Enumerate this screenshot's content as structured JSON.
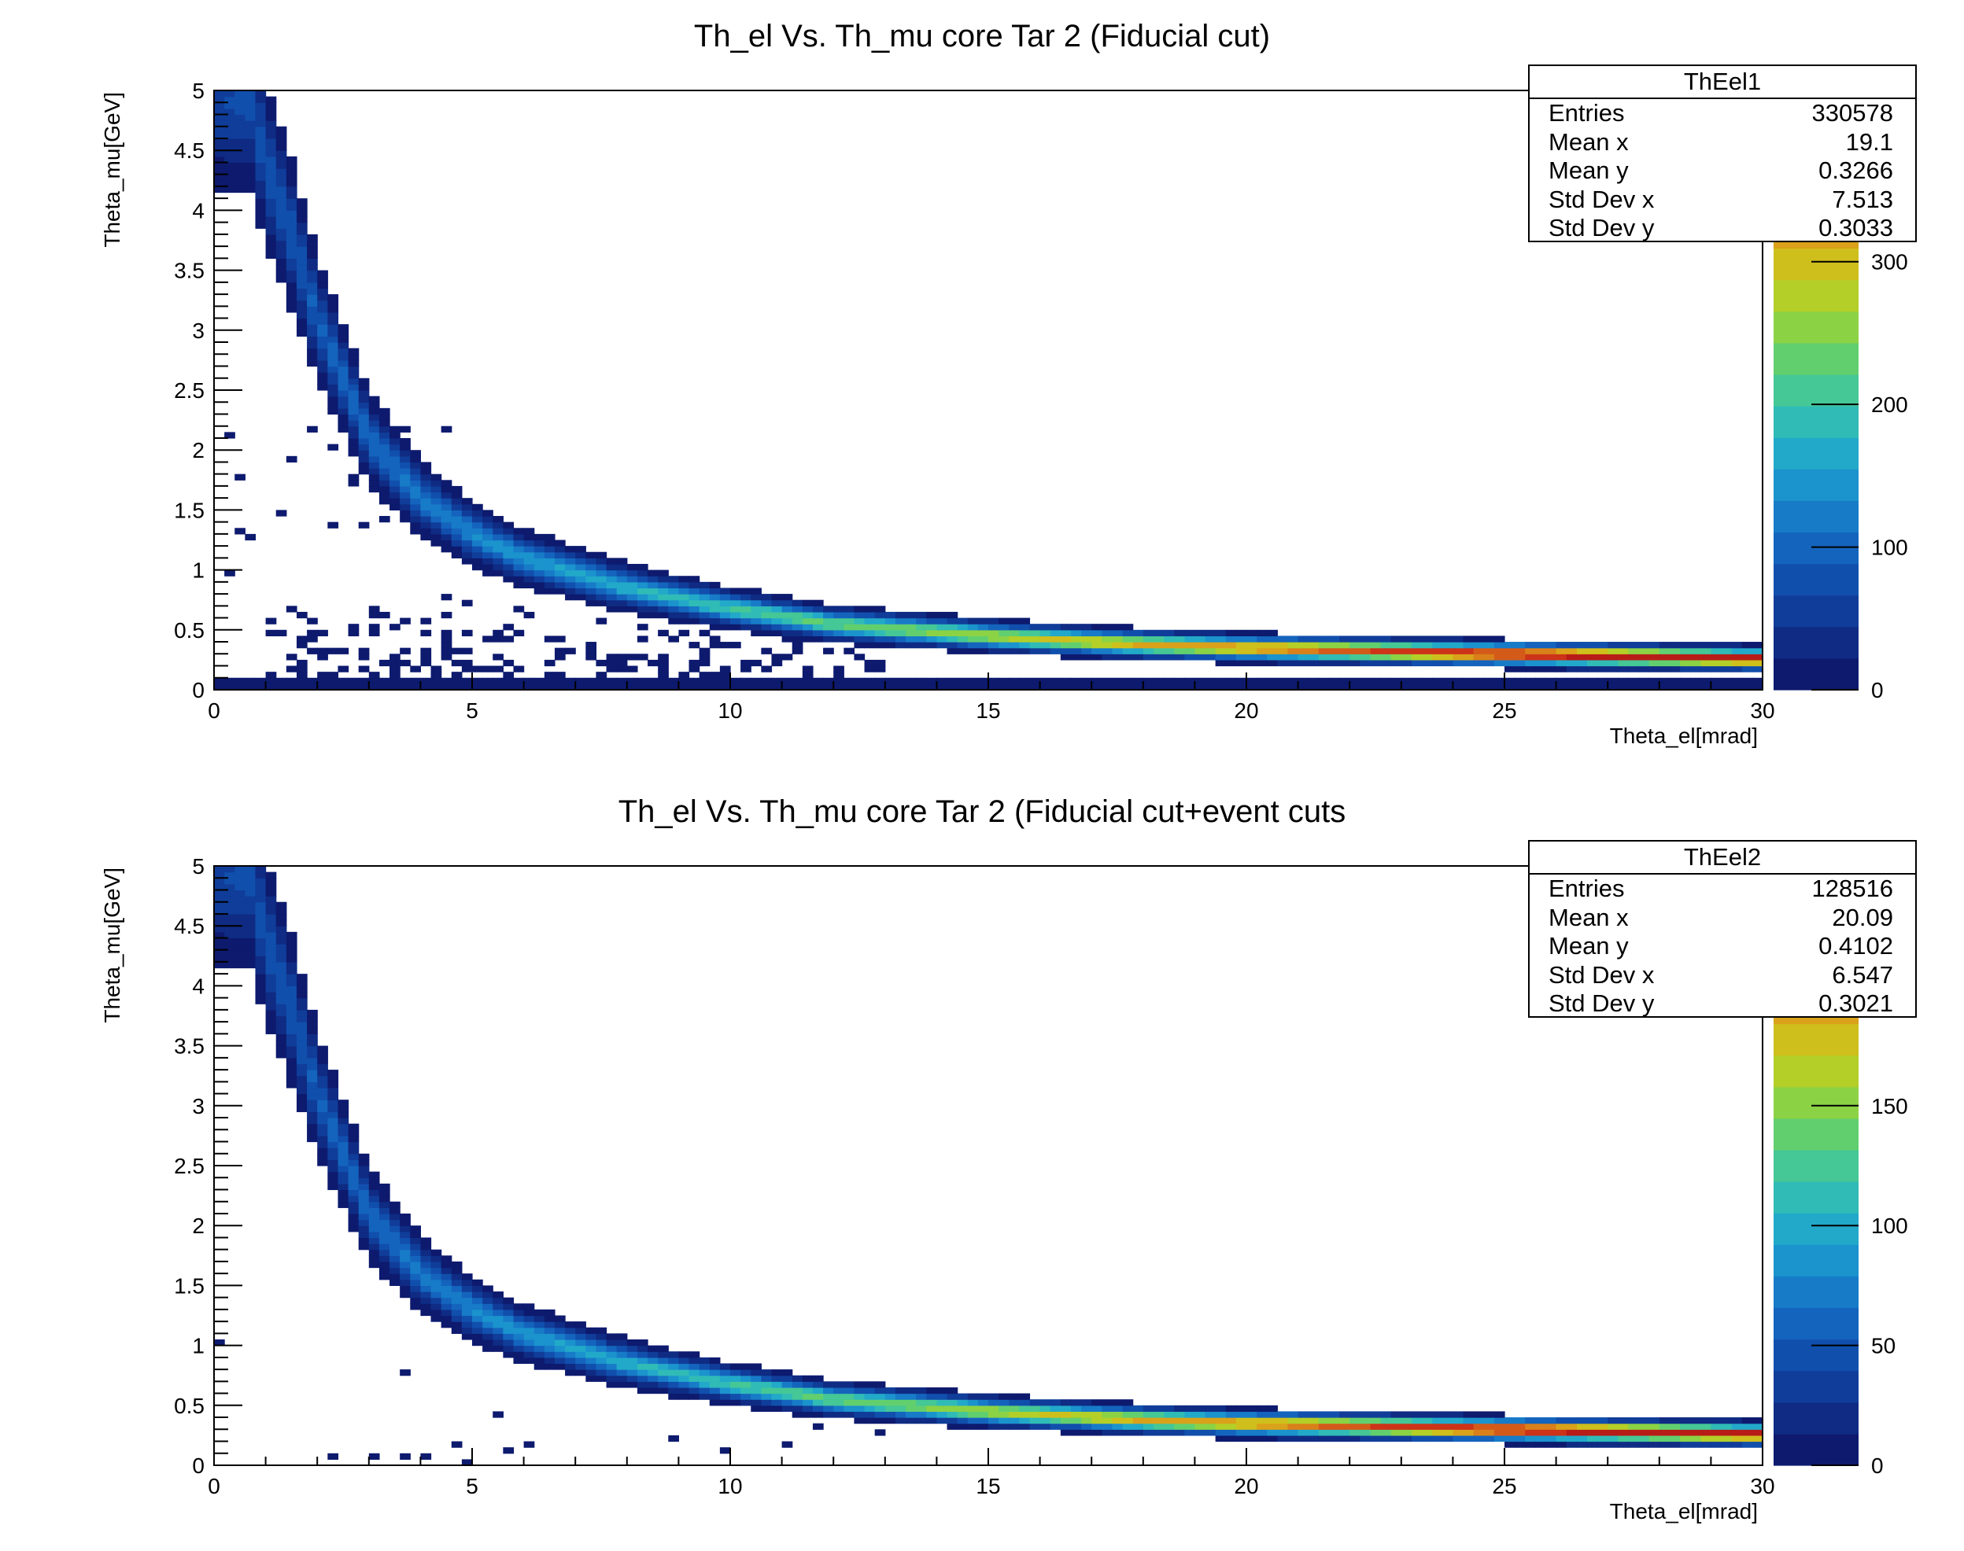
{
  "chart_data": [
    {
      "type": "heatmap",
      "title": "Th_el Vs. Th_mu core Tar 2 (Fiducial cut)",
      "xlabel": "Theta_el[mrad]",
      "ylabel": "Theta_mu[GeV]",
      "xlim": [
        0,
        30
      ],
      "ylim": [
        0,
        5
      ],
      "x_ticks": [
        "0",
        "5",
        "10",
        "15",
        "20",
        "25",
        "30"
      ],
      "y_ticks": [
        "0",
        "0.5",
        "1",
        "1.5",
        "2",
        "2.5",
        "3",
        "3.5",
        "4",
        "4.5",
        "5"
      ],
      "zlim": [
        0,
        420
      ],
      "z_ticks": [
        "0",
        "100",
        "200",
        "300"
      ],
      "grid": false,
      "stats": {
        "name": "ThEel1",
        "rows": [
          {
            "label": "Entries",
            "value": "330578"
          },
          {
            "label": "Mean x",
            "value": "19.1"
          },
          {
            "label": "Mean y",
            "value": "0.3266"
          },
          {
            "label": "Std Dev x",
            "value": "7.513"
          },
          {
            "label": "Std Dev y",
            "value": "0.3033"
          }
        ]
      },
      "band": {
        "x": [
          0.7,
          1,
          1.5,
          2,
          2.5,
          3,
          4,
          5,
          6,
          8,
          10,
          12,
          15,
          18,
          20,
          25,
          30
        ],
        "y": [
          4.9,
          4.4,
          3.8,
          3.1,
          2.6,
          2.1,
          1.6,
          1.3,
          1.1,
          0.85,
          0.68,
          0.55,
          0.45,
          0.38,
          0.35,
          0.3,
          0.26
        ]
      },
      "background": {
        "ymax": 0.75,
        "level": 1
      }
    },
    {
      "type": "heatmap",
      "title": "Th_el Vs. Th_mu core Tar 2 (Fiducial cut+event cuts",
      "xlabel": "Theta_el[mrad]",
      "ylabel": "Theta_mu[GeV]",
      "xlim": [
        0,
        30
      ],
      "ylim": [
        0,
        5
      ],
      "x_ticks": [
        "0",
        "5",
        "10",
        "15",
        "20",
        "25",
        "30"
      ],
      "y_ticks": [
        "0",
        "0.5",
        "1",
        "1.5",
        "2",
        "2.5",
        "3",
        "3.5",
        "4",
        "4.5",
        "5"
      ],
      "zlim": [
        0,
        250
      ],
      "z_ticks": [
        "0",
        "50",
        "100",
        "150",
        "200"
      ],
      "grid": false,
      "stats": {
        "name": "ThEel2",
        "rows": [
          {
            "label": "Entries",
            "value": "128516"
          },
          {
            "label": "Mean x",
            "value": "20.09"
          },
          {
            "label": "Mean y",
            "value": "0.4102"
          },
          {
            "label": "Std Dev x",
            "value": "6.547"
          },
          {
            "label": "Std Dev y",
            "value": "0.3021"
          }
        ]
      },
      "band": {
        "x": [
          0.7,
          1,
          1.5,
          2,
          2.5,
          3,
          4,
          5,
          6,
          8,
          10,
          12,
          15,
          18,
          20,
          25,
          30
        ],
        "y": [
          4.9,
          4.4,
          3.8,
          3.1,
          2.6,
          2.1,
          1.6,
          1.3,
          1.1,
          0.85,
          0.68,
          0.55,
          0.45,
          0.38,
          0.35,
          0.3,
          0.26
        ]
      },
      "background": {
        "ymax": 0.6,
        "level": 0.1
      }
    }
  ],
  "colors": {
    "palette": [
      "#0d1a6e",
      "#0f2b83",
      "#103d99",
      "#114fad",
      "#1464bd",
      "#177bc8",
      "#1b93cd",
      "#22a9c9",
      "#30bbb6",
      "#45c796",
      "#62cf6f",
      "#8bd245",
      "#b3cf28",
      "#cfbf1c",
      "#d9a21a",
      "#d9801a",
      "#d45a1a",
      "#cc3318",
      "#b71c17"
    ]
  }
}
